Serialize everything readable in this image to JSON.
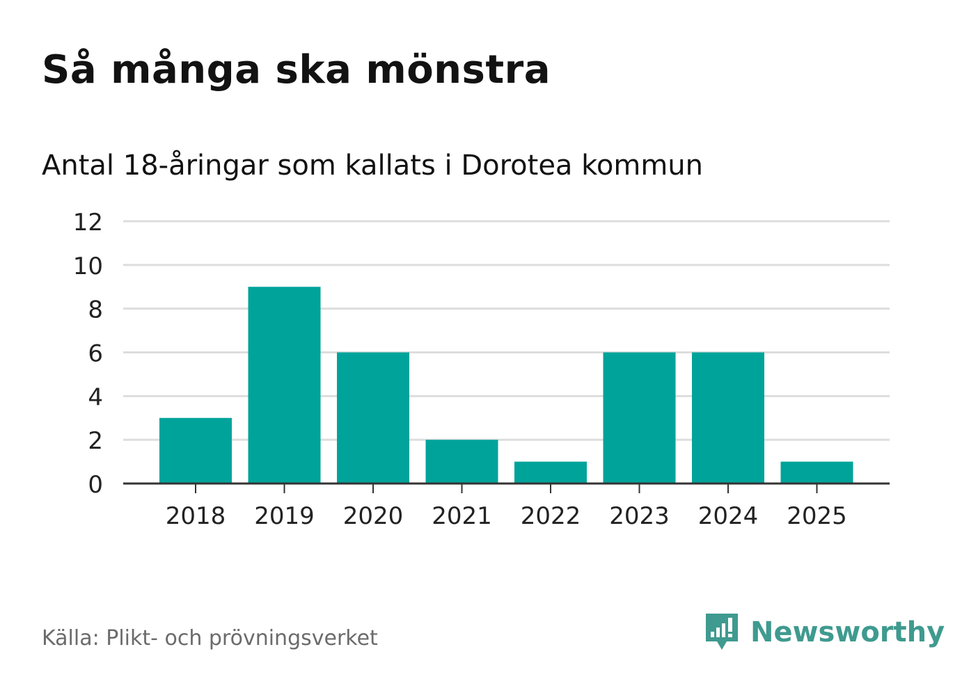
{
  "title": "Så många ska mönstra",
  "subtitle": "Antal 18-åringar som kallats i Dorotea kommun",
  "source": "Källa: Plikt- och prövningsverket",
  "brand": {
    "name": "Newsworthy",
    "icon": "chart-bubble-icon"
  },
  "colors": {
    "bar": "#00a39a",
    "grid": "#dddddd",
    "axis": "#333333",
    "brand": "#3f9a8f"
  },
  "chart_data": {
    "type": "bar",
    "title": "Så många ska mönstra",
    "subtitle": "Antal 18-åringar som kallats i Dorotea kommun",
    "xlabel": "",
    "ylabel": "",
    "categories": [
      "2018",
      "2019",
      "2020",
      "2021",
      "2022",
      "2023",
      "2024",
      "2025"
    ],
    "values": [
      3,
      9,
      6,
      2,
      1,
      6,
      6,
      1
    ],
    "ylim": [
      0,
      12
    ],
    "yticks": [
      0,
      2,
      4,
      6,
      8,
      10,
      12
    ],
    "grid": true,
    "legend": "none"
  }
}
